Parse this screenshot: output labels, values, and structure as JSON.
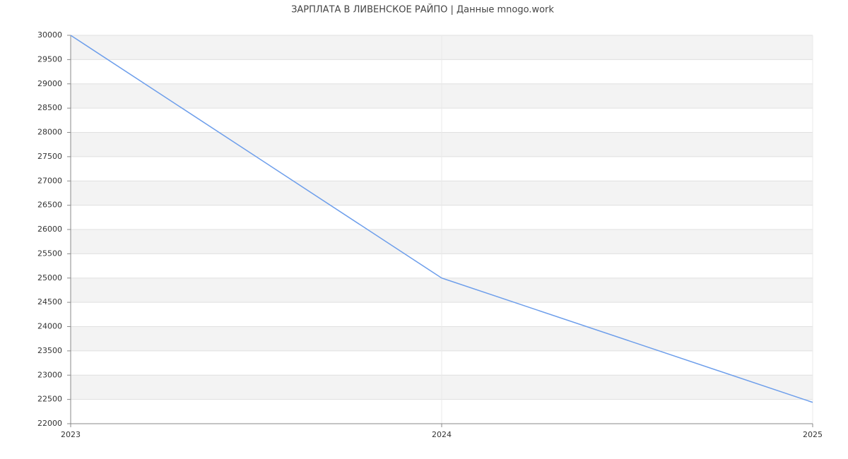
{
  "chart_data": {
    "type": "line",
    "title": "ЗАРПЛАТА В ЛИВЕНСКОЕ РАЙПО | Данные mnogo.work",
    "x": [
      2023,
      2024,
      2025
    ],
    "series": [
      {
        "color": "#6d9eeb",
        "values": [
          30000,
          25000,
          22440
        ]
      }
    ],
    "xlim": [
      2023,
      2025
    ],
    "xticks": [
      2023,
      2024,
      2025
    ],
    "ylim": [
      22000,
      30000
    ],
    "yticks": [
      22000,
      22500,
      23000,
      23500,
      24000,
      24500,
      25000,
      25500,
      26000,
      26500,
      27000,
      27500,
      28000,
      28500,
      29000,
      29500,
      30000
    ],
    "grid": true,
    "banded": true
  }
}
